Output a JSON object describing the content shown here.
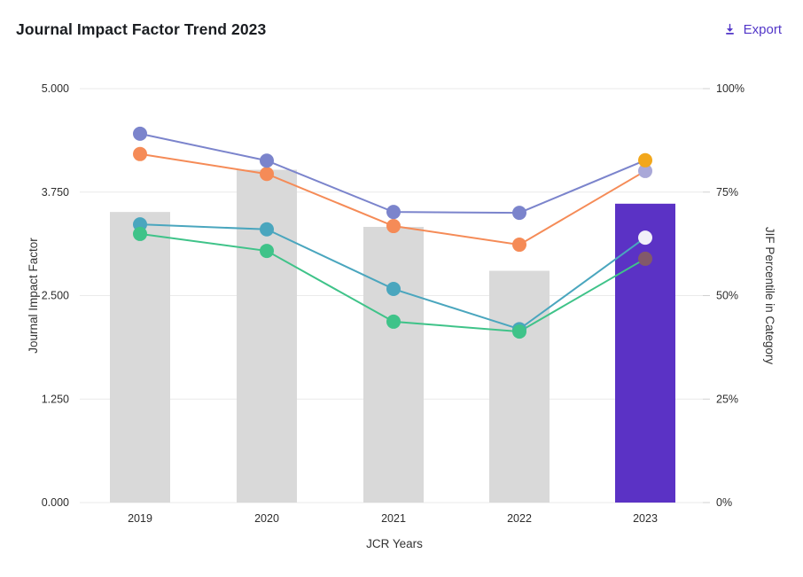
{
  "header": {
    "title": "Journal Impact Factor Trend 2023",
    "export_label": "Export"
  },
  "colors": {
    "accent_purple": "#5236c8",
    "bar_default": "#d9d9d9",
    "bar_highlight": "#5b32c5",
    "gridline": "#eaeaea"
  },
  "chart_data": {
    "type": "combo-bar-line",
    "title": "Journal Impact Factor Trend 2023",
    "categories": [
      "2019",
      "2020",
      "2021",
      "2022",
      "2023"
    ],
    "x_axis": {
      "title": "JCR Years"
    },
    "left_axis": {
      "title": "Journal Impact Factor",
      "ticks": [
        "5.000",
        "3.750",
        "2.500",
        "1.250",
        "0.000"
      ],
      "min": 0,
      "max": 5
    },
    "right_axis": {
      "title": "JIF Percentile in Category",
      "ticks": [
        "100%",
        "75%",
        "50%",
        "25%",
        "0%"
      ],
      "min": 0,
      "max": 100
    },
    "bars": {
      "name": "journal-impact-factor",
      "axis": "left",
      "values": [
        3.51,
        4.02,
        3.33,
        2.8,
        3.61
      ],
      "default_color": "#d9d9d9",
      "highlight_color": "#5b32c5",
      "highlight_index": 4
    },
    "series": [
      {
        "name": "percentile-series-1",
        "axis": "right",
        "color": "#7b84cc",
        "values": [
          89.1,
          82.6,
          70.2,
          70.0,
          82.7
        ],
        "endpoint_color": "#f2a71b"
      },
      {
        "name": "percentile-series-2",
        "axis": "right",
        "color": "#f58b57",
        "values": [
          84.2,
          79.4,
          66.8,
          62.3,
          80.1
        ],
        "endpoint_color": "#a9a8d8"
      },
      {
        "name": "percentile-series-3",
        "axis": "right",
        "color": "#4aa6be",
        "values": [
          67.2,
          66.0,
          51.6,
          41.9,
          64.0
        ],
        "endpoint_color": "#f1eff9"
      },
      {
        "name": "percentile-series-4",
        "axis": "right",
        "color": "#3fc389",
        "values": [
          64.9,
          60.8,
          43.7,
          41.3,
          58.9
        ],
        "endpoint_color": "#82596a"
      }
    ],
    "legend": false,
    "grid": true
  }
}
